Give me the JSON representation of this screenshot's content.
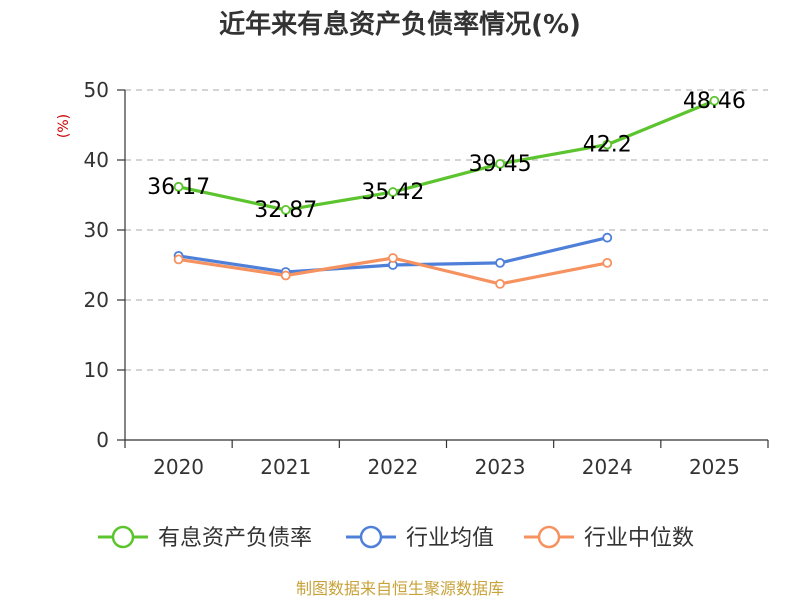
{
  "chart_data": {
    "type": "line",
    "title": "近年来有息资产负债率情况(%)",
    "ylabel": "(%)",
    "xlabel": "",
    "ylim": [
      0,
      50
    ],
    "yticks": [
      0,
      10,
      20,
      30,
      40,
      50
    ],
    "grid": true,
    "legend_position": "bottom",
    "categories": [
      "2020",
      "2021",
      "2022",
      "2023",
      "2024",
      "2025"
    ],
    "series": [
      {
        "name": "有息资产负债率",
        "color": "#5cc42e",
        "values": [
          36.17,
          32.87,
          35.42,
          39.45,
          42.2,
          48.46
        ],
        "labels": [
          "36.17",
          "32.87",
          "35.42",
          "39.45",
          "42.2",
          "48.46"
        ]
      },
      {
        "name": "行业均值",
        "color": "#4f80d9",
        "values": [
          26.3,
          24.0,
          25.0,
          25.3,
          28.9,
          null
        ]
      },
      {
        "name": "行业中位数",
        "color": "#f5925f",
        "values": [
          25.8,
          23.5,
          26.0,
          22.3,
          25.3,
          null
        ]
      }
    ],
    "source": "制图数据来自恒生聚源数据库"
  }
}
